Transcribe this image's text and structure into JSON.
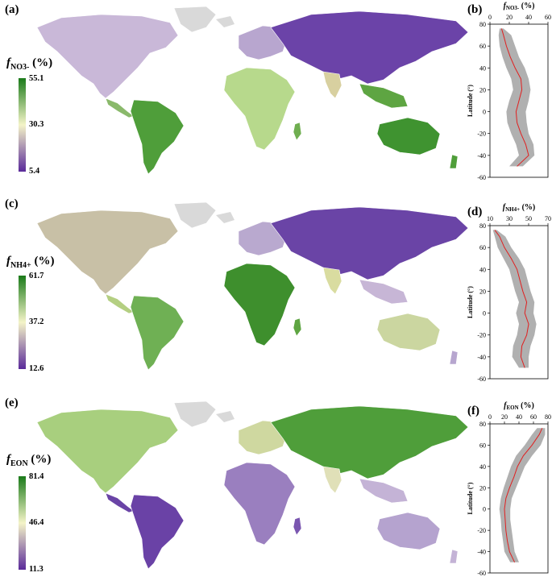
{
  "panels": [
    {
      "map_label": "(a)",
      "profile_label": "(b)",
      "legend_var": "f",
      "legend_sub": "NO3-",
      "legend_unit": "(%)",
      "legend_max": "55.1",
      "legend_mid": "30.3",
      "legend_min": "5.4",
      "profile_title_var": "f",
      "profile_title_sub": "NO3-",
      "profile_title_unit": "(%)",
      "profile_ticks": [
        "0",
        "20",
        "40",
        "60"
      ],
      "profile_range": [
        0,
        60
      ]
    },
    {
      "map_label": "(c)",
      "profile_label": "(d)",
      "legend_var": "f",
      "legend_sub": "NH4+",
      "legend_unit": "(%)",
      "legend_max": "61.7",
      "legend_mid": "37.2",
      "legend_min": "12.6",
      "profile_title_var": "f",
      "profile_title_sub": "NH4+",
      "profile_title_unit": "(%)",
      "profile_ticks": [
        "10",
        "30",
        "50",
        "70"
      ],
      "profile_range": [
        10,
        70
      ]
    },
    {
      "map_label": "(e)",
      "profile_label": "(f)",
      "legend_var": "f",
      "legend_sub": "EON",
      "legend_unit": "(%)",
      "legend_max": "81.4",
      "legend_mid": "46.4",
      "legend_min": "11.3",
      "profile_title_var": "f",
      "profile_title_sub": "EON",
      "profile_title_unit": "(%)",
      "profile_ticks": [
        "0",
        "20",
        "40",
        "60",
        "80"
      ],
      "profile_range": [
        0,
        80
      ]
    }
  ],
  "profile_ylabel": "Latitude (°)",
  "latitude_ticks": [
    "80",
    "60",
    "40",
    "20",
    "0",
    "-20",
    "-40",
    "-60"
  ],
  "colors": {
    "high": "#1a7a1a",
    "mid": "#f4f4c8",
    "low": "#5a2a9a",
    "land_nodata": "#d9d9d9",
    "mean_line": "#e02020",
    "band": "#b0b0b0"
  },
  "chart_data": [
    {
      "type": "line",
      "name_of_panel": "(b)",
      "x_label": "fNO3- (%)",
      "y_label": "Latitude (°)",
      "xlim": [
        0,
        60
      ],
      "ylim": [
        -60,
        80
      ],
      "latitude": [
        76,
        70,
        60,
        50,
        40,
        30,
        20,
        10,
        0,
        -10,
        -20,
        -30,
        -40,
        -50
      ],
      "mean": [
        12,
        14,
        17,
        21,
        26,
        32,
        33,
        30,
        27,
        28,
        32,
        37,
        40,
        28
      ],
      "lower": [
        10,
        9,
        10,
        13,
        17,
        22,
        24,
        20,
        17,
        18,
        22,
        27,
        30,
        20
      ],
      "upper": [
        14,
        22,
        26,
        30,
        36,
        40,
        42,
        40,
        37,
        38,
        40,
        45,
        46,
        34
      ]
    },
    {
      "type": "line",
      "name_of_panel": "(d)",
      "x_label": "fNH4+ (%)",
      "y_label": "Latitude (°)",
      "xlim": [
        10,
        70
      ],
      "ylim": [
        -60,
        80
      ],
      "latitude": [
        76,
        70,
        60,
        50,
        40,
        30,
        20,
        10,
        0,
        -10,
        -20,
        -30,
        -40,
        -50
      ],
      "mean": [
        15,
        20,
        25,
        32,
        38,
        41,
        44,
        48,
        46,
        50,
        48,
        43,
        42,
        46
      ],
      "lower": [
        13,
        15,
        18,
        24,
        30,
        33,
        36,
        40,
        37,
        40,
        38,
        34,
        33,
        40
      ],
      "upper": [
        17,
        26,
        32,
        40,
        46,
        49,
        52,
        56,
        55,
        58,
        56,
        52,
        50,
        50
      ]
    },
    {
      "type": "line",
      "name_of_panel": "(f)",
      "x_label": "fEON (%)",
      "y_label": "Latitude (°)",
      "xlim": [
        0,
        80
      ],
      "ylim": [
        -60,
        80
      ],
      "latitude": [
        76,
        70,
        60,
        50,
        40,
        30,
        20,
        10,
        0,
        -10,
        -20,
        -30,
        -40,
        -50
      ],
      "mean": [
        72,
        68,
        58,
        46,
        38,
        33,
        27,
        22,
        20,
        21,
        22,
        24,
        27,
        34
      ],
      "lower": [
        65,
        58,
        48,
        36,
        29,
        24,
        19,
        15,
        13,
        15,
        16,
        18,
        20,
        28
      ],
      "upper": [
        76,
        76,
        70,
        58,
        48,
        42,
        36,
        30,
        28,
        28,
        30,
        32,
        34,
        40
      ]
    }
  ]
}
